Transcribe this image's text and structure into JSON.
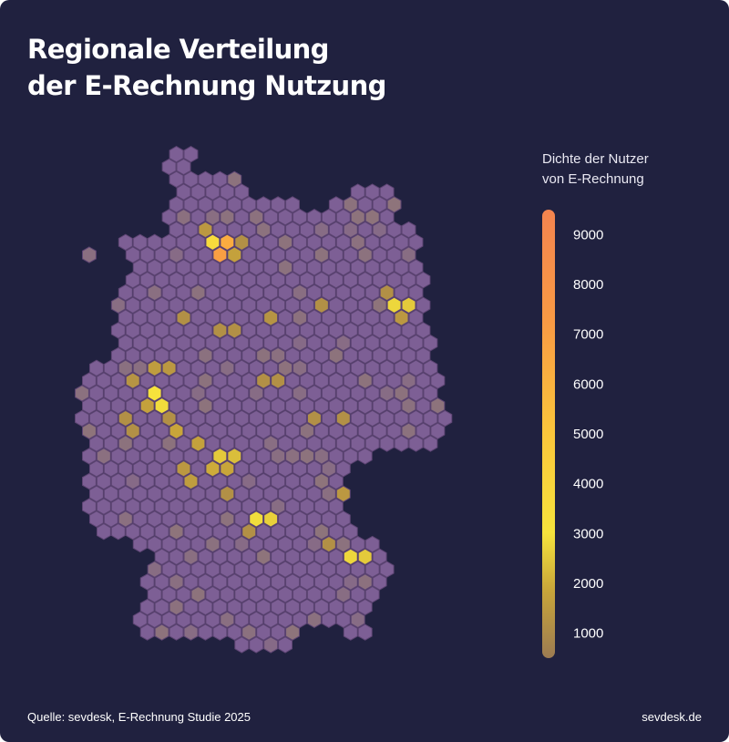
{
  "title": {
    "line1": "Regionale Verteilung",
    "line2": "der E-Rechnung Nutzung"
  },
  "legend": {
    "line1": "Dichte der Nutzer",
    "line2": "von E-Rechnung",
    "ticks": [
      "9000",
      "8000",
      "7000",
      "6000",
      "5000",
      "4000",
      "3000",
      "2000",
      "1000"
    ],
    "range": [
      500,
      9500
    ],
    "gradient": [
      "#9c7b52",
      "#c8a53a",
      "#f6e33c",
      "#fbc63b",
      "#f99a44",
      "#f4844f"
    ]
  },
  "footer": {
    "source": "Quelle: sevdesk, E-Rechnung Studie 2025",
    "brand": "sevdesk.de"
  },
  "colors": {
    "background": "#20213f",
    "hex_base": "#7d5f95",
    "hex_stroke": "#5e4574"
  },
  "chart_data": {
    "type": "heatmap",
    "subtype": "hexbin map of Germany",
    "value_label": "Dichte der Nutzer von E-Rechnung",
    "scale_min": 500,
    "scale_max": 9500,
    "base_value": 200,
    "mid_value": 900,
    "hot_cells": [
      {
        "col": 10,
        "row": 7,
        "value": 6500
      },
      {
        "col": 9,
        "row": 7,
        "value": 3200
      },
      {
        "col": 10,
        "row": 8,
        "value": 7200
      },
      {
        "col": 11,
        "row": 8,
        "value": 1400
      },
      {
        "col": 9,
        "row": 6,
        "value": 1200
      },
      {
        "col": 11,
        "row": 7,
        "value": 1000
      },
      {
        "col": 22,
        "row": 12,
        "value": 2300
      },
      {
        "col": 23,
        "row": 12,
        "value": 2100
      },
      {
        "col": 22,
        "row": 13,
        "value": 1200
      },
      {
        "col": 21,
        "row": 11,
        "value": 1000
      },
      {
        "col": 26,
        "row": 14,
        "value": 1200
      },
      {
        "col": 17,
        "row": 12,
        "value": 1000
      },
      {
        "col": 5,
        "row": 17,
        "value": 1300
      },
      {
        "col": 6,
        "row": 17,
        "value": 1200
      },
      {
        "col": 4,
        "row": 18,
        "value": 1100
      },
      {
        "col": 5,
        "row": 19,
        "value": 2600
      },
      {
        "col": 6,
        "row": 20,
        "value": 2400
      },
      {
        "col": 5,
        "row": 20,
        "value": 1400
      },
      {
        "col": 3,
        "row": 21,
        "value": 1000
      },
      {
        "col": 6,
        "row": 21,
        "value": 1000
      },
      {
        "col": 7,
        "row": 22,
        "value": 1500
      },
      {
        "col": 8,
        "row": 23,
        "value": 1400
      },
      {
        "col": 10,
        "row": 24,
        "value": 2100
      },
      {
        "col": 11,
        "row": 24,
        "value": 1900
      },
      {
        "col": 9,
        "row": 25,
        "value": 1600
      },
      {
        "col": 10,
        "row": 25,
        "value": 1500
      },
      {
        "col": 7,
        "row": 25,
        "value": 1200
      },
      {
        "col": 8,
        "row": 26,
        "value": 1300
      },
      {
        "col": 13,
        "row": 18,
        "value": 1000
      },
      {
        "col": 14,
        "row": 18,
        "value": 1000
      },
      {
        "col": 16,
        "row": 21,
        "value": 1000
      },
      {
        "col": 18,
        "row": 21,
        "value": 1000
      },
      {
        "col": 11,
        "row": 14,
        "value": 1000
      },
      {
        "col": 13,
        "row": 13,
        "value": 1100
      },
      {
        "col": 18,
        "row": 27,
        "value": 1200
      },
      {
        "col": 10,
        "row": 27,
        "value": 1000
      },
      {
        "col": 12,
        "row": 29,
        "value": 2400
      },
      {
        "col": 13,
        "row": 29,
        "value": 2200
      },
      {
        "col": 12,
        "row": 30,
        "value": 1000
      },
      {
        "col": 17,
        "row": 31,
        "value": 1000
      },
      {
        "col": 19,
        "row": 32,
        "value": 2300
      },
      {
        "col": 20,
        "row": 32,
        "value": 2100
      },
      {
        "col": 7,
        "row": 13,
        "value": 1000
      },
      {
        "col": 10,
        "row": 14,
        "value": 1000
      },
      {
        "col": 4,
        "row": 22,
        "value": 1000
      },
      {
        "col": 20,
        "row": 29,
        "value": 1000
      }
    ]
  }
}
